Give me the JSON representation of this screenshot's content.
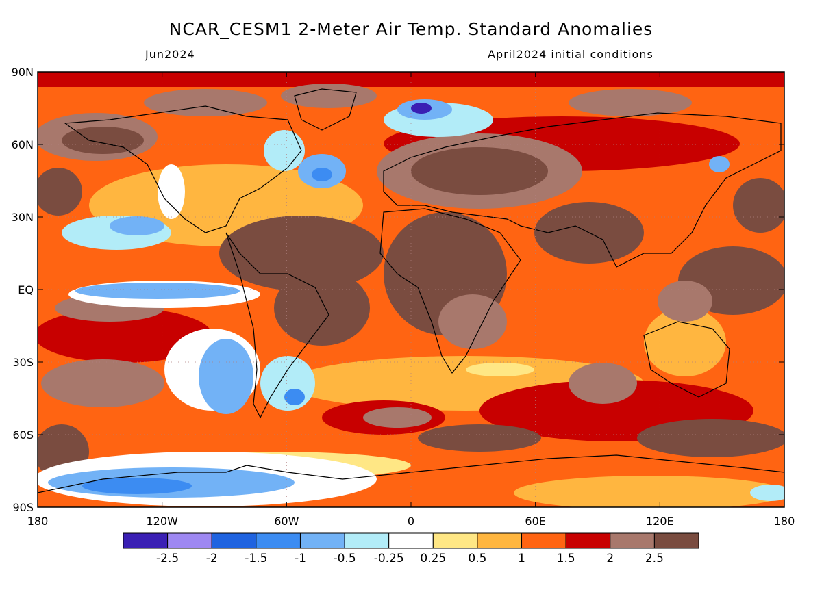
{
  "header": {
    "title": "NCAR_CESM1 2-Meter Air Temp. Standard Anomalies",
    "valid_month": "Jun2024",
    "init_conditions": "April2024 initial conditions"
  },
  "map": {
    "lat_ticks": [
      {
        "value": 90,
        "label": "90N"
      },
      {
        "value": 60,
        "label": "60N"
      },
      {
        "value": 30,
        "label": "30N"
      },
      {
        "value": 0,
        "label": "EQ"
      },
      {
        "value": -30,
        "label": "30S"
      },
      {
        "value": -60,
        "label": "60S"
      },
      {
        "value": -90,
        "label": "90S"
      }
    ],
    "lon_ticks": [
      {
        "value": -180,
        "label": "180"
      },
      {
        "value": -120,
        "label": "120W"
      },
      {
        "value": -60,
        "label": "60W"
      },
      {
        "value": 0,
        "label": "0"
      },
      {
        "value": 60,
        "label": "60E"
      },
      {
        "value": 120,
        "label": "120E"
      },
      {
        "value": 180,
        "label": "180"
      }
    ],
    "lat_range": [
      -90,
      90
    ],
    "lon_range": [
      -180,
      180
    ],
    "grid": true
  },
  "colorbar": {
    "colors": [
      "#3a1fb4",
      "#9e88f2",
      "#1f63e0",
      "#3c8cf2",
      "#72b2f6",
      "#b2ecf8",
      "#ffffff",
      "#ffe785",
      "#ffb640",
      "#ff6412",
      "#c80000",
      "#a8786c",
      "#7a4c40"
    ],
    "labels": [
      "-2.5",
      "-2",
      "-1.5",
      "-1",
      "-0.5",
      "-0.25",
      "0.25",
      "0.5",
      "1",
      "1.5",
      "2",
      "2.5"
    ]
  }
}
